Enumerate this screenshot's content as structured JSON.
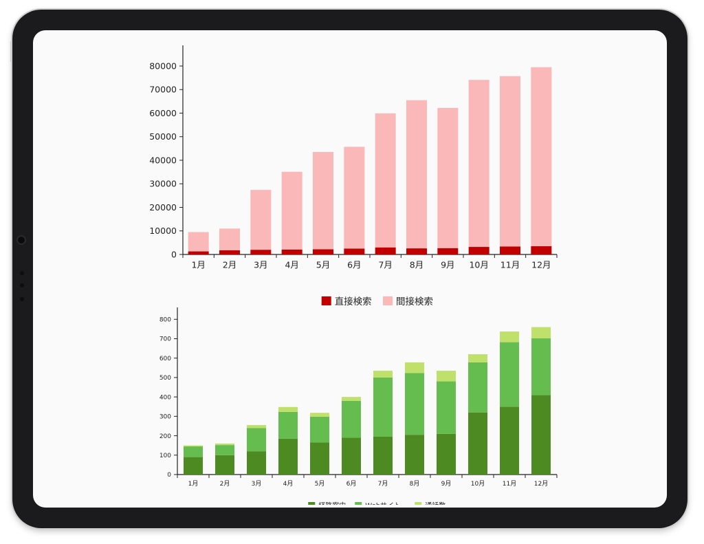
{
  "chart_data": [
    {
      "type": "bar",
      "stacked": true,
      "categories": [
        "1月",
        "2月",
        "3月",
        "4月",
        "5月",
        "6月",
        "7月",
        "8月",
        "9月",
        "10月",
        "11月",
        "12月"
      ],
      "series": [
        {
          "name": "直接検索",
          "color": "#c00000",
          "values": [
            1300,
            1800,
            2000,
            2100,
            2200,
            2500,
            3000,
            2600,
            2700,
            3200,
            3400,
            3500
          ]
        },
        {
          "name": "間接検索",
          "color": "#fbb8b8",
          "values": [
            8200,
            9200,
            25400,
            33000,
            41300,
            43200,
            56900,
            62900,
            59500,
            70900,
            72300,
            76000
          ]
        }
      ],
      "ylim": [
        0,
        87000
      ],
      "yticks": [
        0,
        10000,
        20000,
        30000,
        40000,
        50000,
        60000,
        70000,
        80000
      ],
      "legend_position": "bottom"
    },
    {
      "type": "bar",
      "stacked": true,
      "categories": [
        "1月",
        "2月",
        "3月",
        "4月",
        "5月",
        "6月",
        "7月",
        "8月",
        "9月",
        "10月",
        "11月",
        "12月"
      ],
      "series": [
        {
          "name": "経路案内",
          "color": "#4d8b22",
          "values": [
            90,
            100,
            120,
            185,
            165,
            190,
            195,
            205,
            210,
            320,
            350,
            410
          ]
        },
        {
          "name": "Webサイト",
          "color": "#65bd50",
          "values": [
            55,
            52,
            120,
            138,
            133,
            190,
            305,
            318,
            270,
            258,
            332,
            292
          ]
        },
        {
          "name": "通話数",
          "color": "#bfe06a",
          "values": [
            5,
            8,
            15,
            25,
            20,
            20,
            35,
            55,
            55,
            42,
            55,
            58
          ]
        }
      ],
      "ylim": [
        0,
        840
      ],
      "yticks": [
        0,
        100,
        200,
        300,
        400,
        500,
        600,
        700,
        800
      ],
      "legend_position": "bottom"
    }
  ]
}
